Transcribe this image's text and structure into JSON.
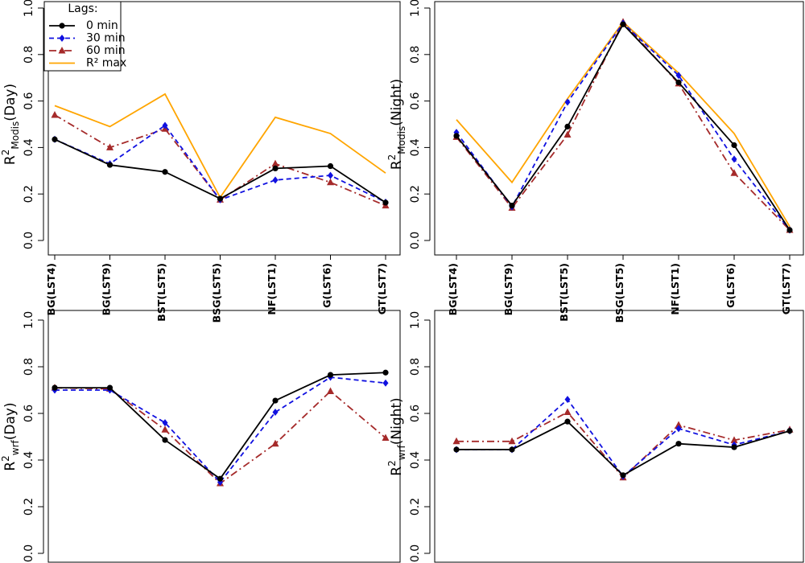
{
  "chart_data": [
    {
      "type": "line",
      "ylabel": {
        "base": "R",
        "sup": "2",
        "sub": "Modis",
        "suffix": "(Day)"
      },
      "categories": [
        "BG(LST4)",
        "BG(LST9)",
        "BST(LST5)",
        "BSG(LST5)",
        "NF(LST1)",
        "G(LST6)",
        "GT(LST7)"
      ],
      "ylim": [
        0,
        1
      ],
      "yticks": [
        {
          "value": 0,
          "label": "0.0"
        },
        0.2,
        0.4,
        0.6,
        0.8,
        {
          "value": 1,
          "label": "1.0"
        }
      ],
      "legend": {
        "title": "Lags:",
        "position": "top-left"
      },
      "series": [
        {
          "name": "0 min",
          "color": "#000000",
          "linestyle": "solid",
          "marker": "circle",
          "values": [
            0.435,
            0.325,
            0.295,
            0.18,
            0.31,
            0.32,
            0.163
          ]
        },
        {
          "name": "30 min",
          "color": "#1010e0",
          "linestyle": "dashed",
          "marker": "diamond",
          "values": [
            0.435,
            0.33,
            0.495,
            0.175,
            0.26,
            0.28,
            0.165
          ]
        },
        {
          "name": "60 min",
          "color": "#a52a2a",
          "linestyle": "dashdot",
          "marker": "triangle",
          "values": [
            0.54,
            0.4,
            0.48,
            0.175,
            0.33,
            0.25,
            0.15
          ]
        },
        {
          "name": "R² max",
          "color": "#ffa500",
          "linestyle": "solid",
          "marker": "none",
          "values": [
            0.58,
            0.49,
            0.63,
            0.185,
            0.53,
            0.46,
            0.29
          ]
        }
      ]
    },
    {
      "type": "line",
      "ylabel": {
        "base": "R",
        "sup": "2",
        "sub": "Modis",
        "suffix": "(Night)"
      },
      "categories": [
        "BG(LST4)",
        "BG(LST9)",
        "BST(LST5)",
        "BSG(LST5)",
        "NF(LST1)",
        "G(LST6)",
        "GT(LST7)"
      ],
      "ylim": [
        0,
        1
      ],
      "yticks": [
        {
          "value": 0,
          "label": "0.0"
        },
        0.2,
        0.4,
        0.6,
        0.8,
        {
          "value": 1,
          "label": "1.0"
        }
      ],
      "series": [
        {
          "color": "#000000",
          "linestyle": "solid",
          "marker": "circle",
          "values": [
            0.45,
            0.15,
            0.49,
            0.93,
            0.68,
            0.41,
            0.045
          ]
        },
        {
          "color": "#1010e0",
          "linestyle": "dashed",
          "marker": "diamond",
          "values": [
            0.465,
            0.145,
            0.595,
            0.935,
            0.71,
            0.35,
            0.045
          ]
        },
        {
          "color": "#a52a2a",
          "linestyle": "dashdot",
          "marker": "triangle",
          "values": [
            0.445,
            0.14,
            0.455,
            0.94,
            0.675,
            0.29,
            0.045
          ]
        },
        {
          "color": "#ffa500",
          "linestyle": "solid",
          "marker": "none",
          "values": [
            0.52,
            0.25,
            0.61,
            0.94,
            0.72,
            0.46,
            0.06
          ]
        }
      ]
    },
    {
      "type": "line",
      "ylabel": {
        "base": "R",
        "sup": "2",
        "sub": "wrf",
        "suffix": "(Day)"
      },
      "categories": [
        null,
        null,
        null,
        null,
        null,
        null,
        null
      ],
      "ylim": [
        0,
        1
      ],
      "yticks": [
        {
          "value": 0,
          "label": "0.0"
        },
        0.2,
        0.4,
        0.6,
        0.8,
        {
          "value": 1,
          "label": "1.0"
        }
      ],
      "series": [
        {
          "color": "#000000",
          "linestyle": "solid",
          "marker": "circle",
          "values": [
            0.71,
            0.71,
            0.486,
            0.32,
            0.655,
            0.765,
            0.775
          ]
        },
        {
          "color": "#1010e0",
          "linestyle": "dashed",
          "marker": "diamond",
          "values": [
            0.7,
            0.7,
            0.56,
            0.305,
            0.605,
            0.755,
            0.73
          ]
        },
        {
          "color": "#a52a2a",
          "linestyle": "dashdot",
          "marker": "triangle",
          "values": [
            0.71,
            0.705,
            0.53,
            0.3,
            0.47,
            0.695,
            0.495
          ]
        }
      ]
    },
    {
      "type": "line",
      "ylabel": {
        "base": "R",
        "sup": "2",
        "sub": "wrf",
        "suffix": "(Night)"
      },
      "categories": [
        null,
        null,
        null,
        null,
        null,
        null,
        null
      ],
      "ylim": [
        0,
        1
      ],
      "yticks": [
        {
          "value": 0,
          "label": "0.0"
        },
        0.2,
        0.4,
        0.6,
        0.8,
        {
          "value": 1,
          "label": "1.0"
        }
      ],
      "series": [
        {
          "color": "#000000",
          "linestyle": "solid",
          "marker": "circle",
          "values": [
            0.445,
            0.445,
            0.565,
            0.335,
            0.47,
            0.455,
            0.525
          ]
        },
        {
          "color": "#1010e0",
          "linestyle": "dashed",
          "marker": "diamond",
          "values": [
            0.445,
            0.445,
            0.66,
            0.33,
            0.535,
            0.465,
            0.525
          ]
        },
        {
          "color": "#a52a2a",
          "linestyle": "dashdot",
          "marker": "triangle",
          "values": [
            0.48,
            0.48,
            0.605,
            0.325,
            0.55,
            0.485,
            0.53
          ]
        }
      ]
    }
  ]
}
